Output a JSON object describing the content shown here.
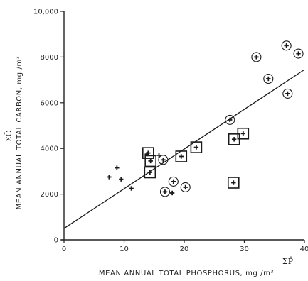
{
  "chart_data": {
    "type": "scatter",
    "xlabel": "MEAN ANNUAL TOTAL PHOSPHORUS, mg /m³",
    "xlabel_symbol": "ΣP̄",
    "ylabel": "MEAN ANNUAL TOTAL CARBON, mg /m³",
    "ylabel_symbol": "ΣC̄",
    "xlim": [
      0,
      40
    ],
    "ylim": [
      0,
      10000
    ],
    "x_ticks": [
      0,
      10,
      20,
      30,
      40
    ],
    "x_tick_labels": [
      "0",
      "10",
      "20",
      "30",
      "40"
    ],
    "y_ticks": [
      0,
      2000,
      4000,
      6000,
      8000,
      10000
    ],
    "y_tick_labels": [
      "0",
      "2000",
      "4000",
      "6000",
      "8000",
      "10,000"
    ],
    "grid": false,
    "legend": "none",
    "marker_color": "#1a1a1a",
    "series": [
      {
        "marker": "cross",
        "points": [
          [
            7.5,
            2750
          ],
          [
            8.8,
            3150
          ],
          [
            9.5,
            2650
          ],
          [
            11.2,
            2250
          ],
          [
            13.8,
            3750
          ],
          [
            15.8,
            3700
          ],
          [
            18.0,
            2050
          ]
        ]
      },
      {
        "marker": "circled-cross",
        "points": [
          [
            16.5,
            3500
          ],
          [
            16.8,
            2100
          ],
          [
            18.2,
            2550
          ],
          [
            20.2,
            2300
          ],
          [
            27.6,
            5250
          ],
          [
            32.0,
            8000
          ],
          [
            34.0,
            7050
          ],
          [
            37.0,
            8500
          ],
          [
            37.2,
            6400
          ],
          [
            39.0,
            8150
          ]
        ]
      },
      {
        "marker": "boxed-cross",
        "points": [
          [
            14.0,
            3800
          ],
          [
            14.4,
            3450
          ],
          [
            14.3,
            2950
          ],
          [
            19.5,
            3650
          ],
          [
            22.0,
            4050
          ],
          [
            28.3,
            4400
          ],
          [
            29.8,
            4650
          ],
          [
            28.2,
            2500
          ]
        ]
      }
    ],
    "fit_line": {
      "x": [
        0,
        40
      ],
      "y": [
        500,
        7450
      ]
    }
  }
}
